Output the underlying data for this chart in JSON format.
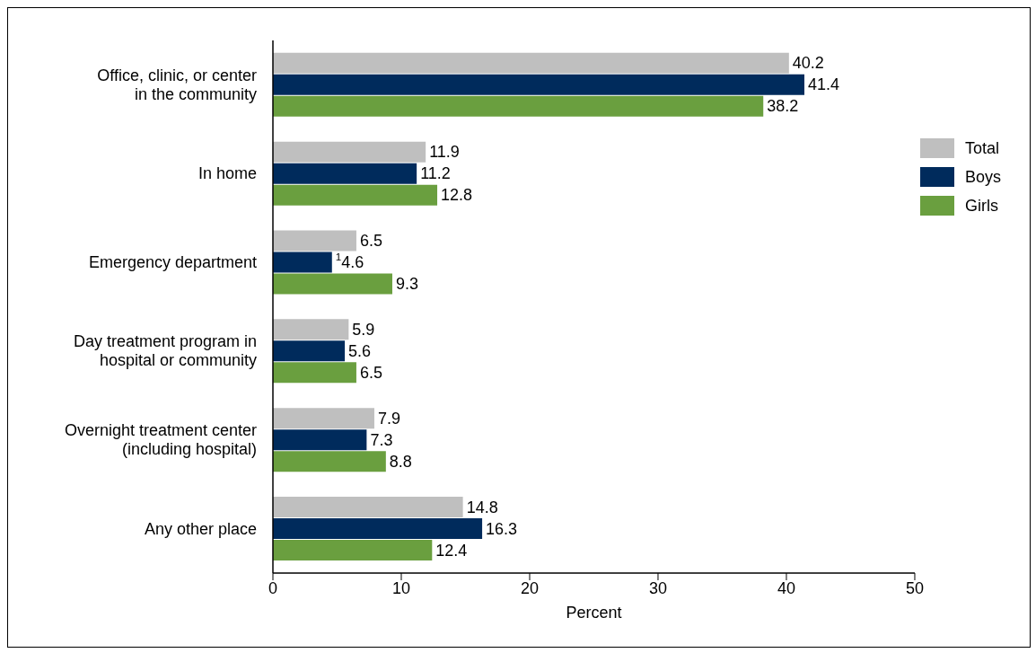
{
  "chart_data": {
    "type": "bar",
    "orientation": "horizontal",
    "xlabel": "Percent",
    "categories": [
      "Office, clinic, or center in the community",
      "In home",
      "Emergency department",
      "Day treatment program in hospital or community",
      "Overnight treatment center (including hospital)",
      "Any other place"
    ],
    "series": [
      {
        "name": "Total",
        "color": "#bfbfbf",
        "values": [
          40.2,
          11.9,
          6.5,
          5.9,
          7.9,
          14.8
        ],
        "value_labels": [
          "40.2",
          "11.9",
          "6.5",
          "5.9",
          "7.9",
          "14.8"
        ]
      },
      {
        "name": "Boys",
        "color": "#002b5c",
        "values": [
          41.4,
          11.2,
          4.6,
          5.6,
          7.3,
          16.3
        ],
        "value_labels": [
          "41.4",
          "11.2",
          "$^{1}$4.6",
          "5.6",
          "7.3",
          "16.3"
        ]
      },
      {
        "name": "Girls",
        "color": "#6a9f3f",
        "values": [
          38.2,
          12.8,
          9.3,
          6.5,
          8.8,
          12.4
        ],
        "value_labels": [
          "38.2",
          "12.8",
          "9.3",
          "6.5",
          "8.8",
          "12.4"
        ]
      }
    ],
    "xlim": [
      0,
      50
    ],
    "xticks": [
      0,
      10,
      20,
      30,
      40,
      50
    ],
    "legend": "top right"
  }
}
